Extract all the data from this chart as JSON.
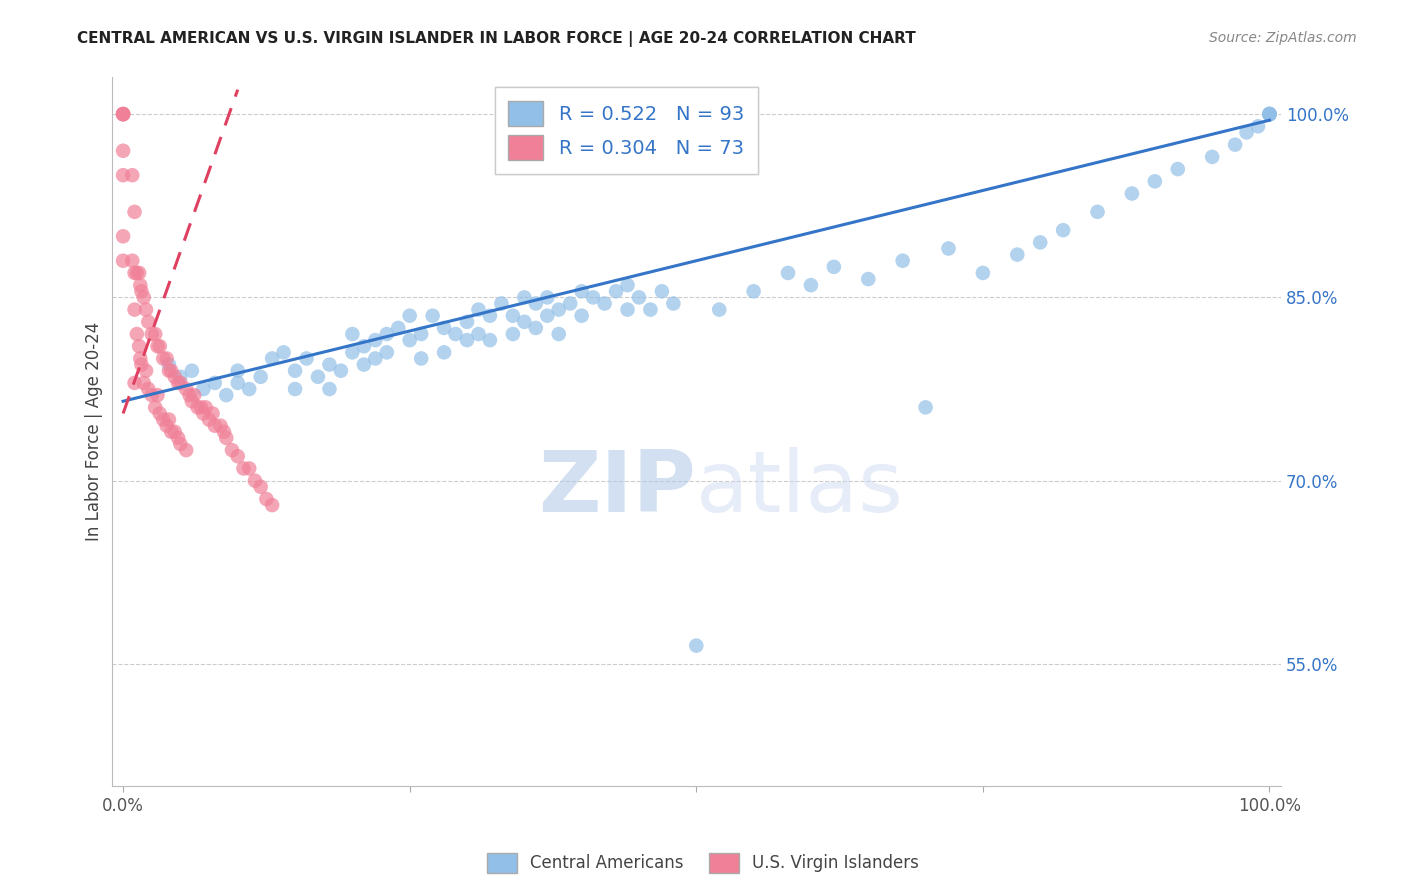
{
  "title": "CENTRAL AMERICAN VS U.S. VIRGIN ISLANDER IN LABOR FORCE | AGE 20-24 CORRELATION CHART",
  "source": "Source: ZipAtlas.com",
  "ylabel": "In Labor Force | Age 20-24",
  "r_central": 0.522,
  "n_central": 93,
  "r_virgin": 0.304,
  "n_virgin": 73,
  "xlim": [
    -0.01,
    1.01
  ],
  "ylim": [
    0.45,
    1.03
  ],
  "ytick_values": [
    0.55,
    0.7,
    0.85,
    1.0
  ],
  "ytick_labels": [
    "55.0%",
    "70.0%",
    "85.0%",
    "100.0%"
  ],
  "color_central": "#92BFE8",
  "color_virgin": "#F08098",
  "trend_color_central": "#3575C8",
  "trend_color_virgin": "#E04060",
  "background_color": "#FFFFFF",
  "grid_color": "#CCCCCC",
  "watermark_zip": "ZIP",
  "watermark_atlas": "atlas",
  "central_x": [
    0.04,
    0.05,
    0.06,
    0.07,
    0.08,
    0.09,
    0.1,
    0.1,
    0.11,
    0.12,
    0.13,
    0.14,
    0.15,
    0.15,
    0.16,
    0.17,
    0.18,
    0.18,
    0.19,
    0.2,
    0.2,
    0.21,
    0.21,
    0.22,
    0.22,
    0.23,
    0.23,
    0.24,
    0.25,
    0.25,
    0.26,
    0.26,
    0.27,
    0.28,
    0.28,
    0.29,
    0.3,
    0.3,
    0.31,
    0.31,
    0.32,
    0.32,
    0.33,
    0.34,
    0.34,
    0.35,
    0.35,
    0.36,
    0.36,
    0.37,
    0.37,
    0.38,
    0.38,
    0.39,
    0.4,
    0.4,
    0.41,
    0.42,
    0.43,
    0.44,
    0.44,
    0.45,
    0.46,
    0.47,
    0.48,
    0.5,
    0.52,
    0.55,
    0.58,
    0.6,
    0.62,
    0.65,
    0.68,
    0.7,
    0.72,
    0.75,
    0.78,
    0.8,
    0.82,
    0.85,
    0.88,
    0.9,
    0.92,
    0.95,
    0.97,
    0.98,
    0.99,
    1.0,
    1.0,
    1.0,
    1.0,
    1.0,
    1.0
  ],
  "central_y": [
    0.795,
    0.785,
    0.79,
    0.775,
    0.78,
    0.77,
    0.79,
    0.78,
    0.775,
    0.785,
    0.8,
    0.805,
    0.775,
    0.79,
    0.8,
    0.785,
    0.795,
    0.775,
    0.79,
    0.805,
    0.82,
    0.81,
    0.795,
    0.815,
    0.8,
    0.82,
    0.805,
    0.825,
    0.815,
    0.835,
    0.82,
    0.8,
    0.835,
    0.825,
    0.805,
    0.82,
    0.815,
    0.83,
    0.84,
    0.82,
    0.835,
    0.815,
    0.845,
    0.835,
    0.82,
    0.85,
    0.83,
    0.845,
    0.825,
    0.85,
    0.835,
    0.84,
    0.82,
    0.845,
    0.855,
    0.835,
    0.85,
    0.845,
    0.855,
    0.84,
    0.86,
    0.85,
    0.84,
    0.855,
    0.845,
    0.565,
    0.84,
    0.855,
    0.87,
    0.86,
    0.875,
    0.865,
    0.88,
    0.76,
    0.89,
    0.87,
    0.885,
    0.895,
    0.905,
    0.92,
    0.935,
    0.945,
    0.955,
    0.965,
    0.975,
    0.985,
    0.99,
    1.0,
    1.0,
    1.0,
    1.0,
    1.0,
    1.0
  ],
  "virgin_x": [
    0.0,
    0.0,
    0.0,
    0.0,
    0.0,
    0.0,
    0.0,
    0.0,
    0.008,
    0.008,
    0.01,
    0.01,
    0.01,
    0.01,
    0.012,
    0.012,
    0.014,
    0.014,
    0.015,
    0.015,
    0.016,
    0.016,
    0.018,
    0.018,
    0.02,
    0.02,
    0.022,
    0.022,
    0.025,
    0.025,
    0.028,
    0.028,
    0.03,
    0.03,
    0.032,
    0.032,
    0.035,
    0.035,
    0.038,
    0.038,
    0.04,
    0.04,
    0.042,
    0.042,
    0.045,
    0.045,
    0.048,
    0.048,
    0.05,
    0.05,
    0.055,
    0.055,
    0.058,
    0.06,
    0.062,
    0.065,
    0.068,
    0.07,
    0.072,
    0.075,
    0.078,
    0.08,
    0.085,
    0.088,
    0.09,
    0.095,
    0.1,
    0.105,
    0.11,
    0.115,
    0.12,
    0.125,
    0.13
  ],
  "virgin_y": [
    1.0,
    1.0,
    1.0,
    1.0,
    0.97,
    0.95,
    0.9,
    0.88,
    0.95,
    0.88,
    0.92,
    0.87,
    0.84,
    0.78,
    0.87,
    0.82,
    0.87,
    0.81,
    0.86,
    0.8,
    0.855,
    0.795,
    0.85,
    0.78,
    0.84,
    0.79,
    0.83,
    0.775,
    0.82,
    0.77,
    0.82,
    0.76,
    0.81,
    0.77,
    0.81,
    0.755,
    0.8,
    0.75,
    0.8,
    0.745,
    0.79,
    0.75,
    0.79,
    0.74,
    0.785,
    0.74,
    0.78,
    0.735,
    0.78,
    0.73,
    0.775,
    0.725,
    0.77,
    0.765,
    0.77,
    0.76,
    0.76,
    0.755,
    0.76,
    0.75,
    0.755,
    0.745,
    0.745,
    0.74,
    0.735,
    0.725,
    0.72,
    0.71,
    0.71,
    0.7,
    0.695,
    0.685,
    0.68
  ]
}
